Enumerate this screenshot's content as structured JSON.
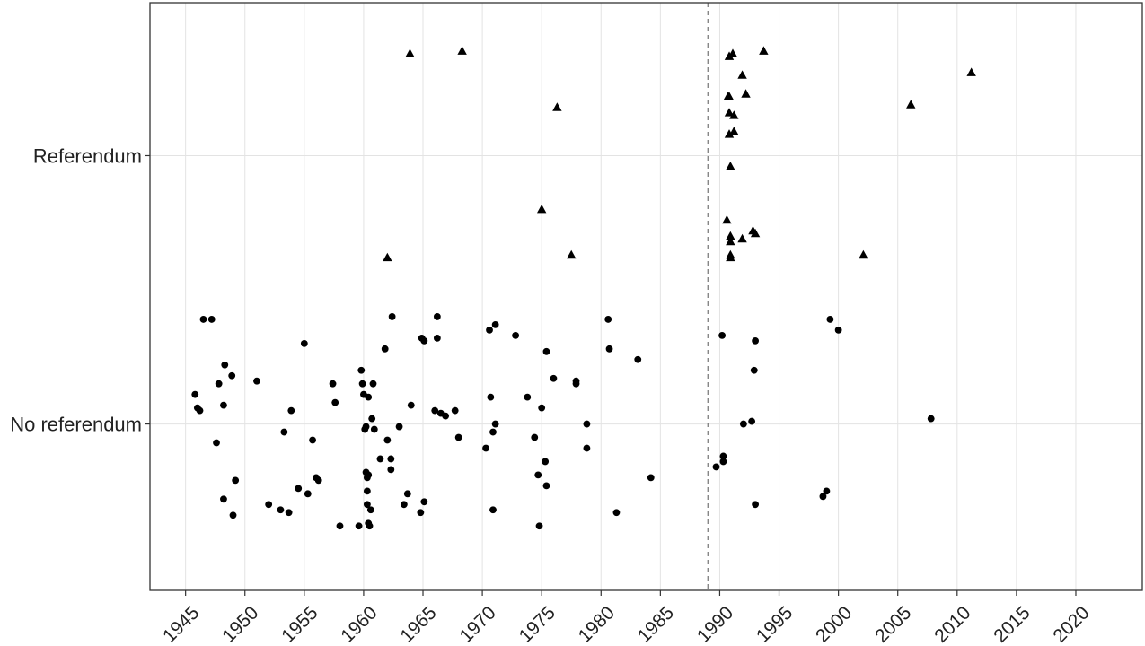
{
  "chart_data": {
    "type": "scatter",
    "title": "",
    "xlabel": "",
    "ylabel": "",
    "xlim": [
      1942,
      2025.6
    ],
    "ylim": [
      -0.62,
      1.57
    ],
    "x_ticks": [
      1945,
      1950,
      1955,
      1960,
      1965,
      1970,
      1975,
      1980,
      1985,
      1990,
      1995,
      2000,
      2005,
      2010,
      2015,
      2020
    ],
    "y_categories": [
      {
        "label": "No referendum",
        "value": 0
      },
      {
        "label": "Referendum",
        "value": 1
      }
    ],
    "grid": true,
    "reference_line": {
      "x": 1989,
      "style": "dashed"
    },
    "series": [
      {
        "marker": "circle",
        "points": [
          [
            1945.8,
            0.11
          ],
          [
            1946.0,
            0.06
          ],
          [
            1946.2,
            0.05
          ],
          [
            1946.5,
            0.39
          ],
          [
            1947.2,
            0.39
          ],
          [
            1947.6,
            -0.07
          ],
          [
            1947.8,
            0.15
          ],
          [
            1948.2,
            -0.28
          ],
          [
            1948.3,
            0.22
          ],
          [
            1948.2,
            0.07
          ],
          [
            1948.9,
            0.18
          ],
          [
            1949.0,
            -0.34
          ],
          [
            1949.2,
            -0.21
          ],
          [
            1951.0,
            0.16
          ],
          [
            1952.0,
            -0.3
          ],
          [
            1953.0,
            -0.32
          ],
          [
            1953.3,
            -0.03
          ],
          [
            1953.7,
            -0.33
          ],
          [
            1953.9,
            0.05
          ],
          [
            1954.5,
            -0.24
          ],
          [
            1955.0,
            0.3
          ],
          [
            1955.3,
            -0.26
          ],
          [
            1955.7,
            -0.06
          ],
          [
            1956.0,
            -0.2
          ],
          [
            1956.2,
            -0.21
          ],
          [
            1957.4,
            0.15
          ],
          [
            1957.6,
            0.08
          ],
          [
            1958.0,
            -0.38
          ],
          [
            1959.6,
            -0.38
          ],
          [
            1959.8,
            0.2
          ],
          [
            1959.9,
            0.15
          ],
          [
            1960.0,
            0.11
          ],
          [
            1960.1,
            -0.02
          ],
          [
            1960.2,
            -0.01
          ],
          [
            1960.2,
            -0.18
          ],
          [
            1960.3,
            -0.2
          ],
          [
            1960.3,
            -0.25
          ],
          [
            1960.3,
            -0.3
          ],
          [
            1960.4,
            -0.19
          ],
          [
            1960.4,
            0.1
          ],
          [
            1960.4,
            -0.37
          ],
          [
            1960.5,
            -0.38
          ],
          [
            1960.6,
            -0.32
          ],
          [
            1960.7,
            0.02
          ],
          [
            1960.8,
            0.15
          ],
          [
            1960.9,
            -0.02
          ],
          [
            1961.4,
            -0.13
          ],
          [
            1961.8,
            0.28
          ],
          [
            1962.0,
            -0.06
          ],
          [
            1962.3,
            -0.17
          ],
          [
            1962.3,
            -0.13
          ],
          [
            1962.4,
            0.4
          ],
          [
            1963.0,
            -0.01
          ],
          [
            1963.4,
            -0.3
          ],
          [
            1963.7,
            -0.26
          ],
          [
            1964.0,
            0.07
          ],
          [
            1964.8,
            -0.33
          ],
          [
            1964.9,
            0.32
          ],
          [
            1965.1,
            0.31
          ],
          [
            1965.1,
            -0.29
          ],
          [
            1966.0,
            0.05
          ],
          [
            1966.2,
            0.4
          ],
          [
            1966.2,
            0.32
          ],
          [
            1966.5,
            0.04
          ],
          [
            1966.9,
            0.03
          ],
          [
            1967.7,
            0.05
          ],
          [
            1968.0,
            -0.05
          ],
          [
            1970.3,
            -0.09
          ],
          [
            1970.6,
            0.35
          ],
          [
            1970.7,
            0.1
          ],
          [
            1970.9,
            -0.03
          ],
          [
            1970.9,
            -0.32
          ],
          [
            1971.1,
            0.37
          ],
          [
            1971.1,
            0.0
          ],
          [
            1972.8,
            0.33
          ],
          [
            1973.8,
            0.1
          ],
          [
            1974.4,
            -0.05
          ],
          [
            1974.7,
            -0.19
          ],
          [
            1974.8,
            -0.38
          ],
          [
            1975.0,
            0.06
          ],
          [
            1975.3,
            -0.14
          ],
          [
            1975.4,
            0.27
          ],
          [
            1975.4,
            -0.23
          ],
          [
            1976.0,
            0.17
          ],
          [
            1977.9,
            0.16
          ],
          [
            1977.9,
            0.15
          ],
          [
            1978.8,
            0.0
          ],
          [
            1978.8,
            -0.09
          ],
          [
            1980.6,
            0.39
          ],
          [
            1980.7,
            0.28
          ],
          [
            1981.3,
            -0.33
          ],
          [
            1983.1,
            0.24
          ],
          [
            1984.2,
            -0.2
          ],
          [
            1989.7,
            -0.16
          ],
          [
            1990.2,
            0.33
          ],
          [
            1990.3,
            -0.12
          ],
          [
            1990.3,
            -0.14
          ],
          [
            1992.0,
            0.0
          ],
          [
            1992.7,
            0.01
          ],
          [
            1992.9,
            0.2
          ],
          [
            1993.0,
            0.31
          ],
          [
            1993.0,
            -0.3
          ],
          [
            1998.7,
            -0.27
          ],
          [
            1999.0,
            -0.25
          ],
          [
            1999.3,
            0.39
          ],
          [
            2000.0,
            0.35
          ],
          [
            2007.8,
            0.02
          ]
        ]
      },
      {
        "marker": "triangle",
        "points": [
          [
            1962.0,
            0.62
          ],
          [
            1963.9,
            1.38
          ],
          [
            1968.3,
            1.39
          ],
          [
            1975.0,
            0.8
          ],
          [
            1976.3,
            1.18
          ],
          [
            1977.5,
            0.63
          ],
          [
            1990.6,
            0.76
          ],
          [
            1990.7,
            1.22
          ],
          [
            1990.8,
            1.22
          ],
          [
            1990.8,
            1.37
          ],
          [
            1990.8,
            1.16
          ],
          [
            1990.8,
            1.08
          ],
          [
            1990.9,
            0.96
          ],
          [
            1990.9,
            0.7
          ],
          [
            1990.9,
            0.68
          ],
          [
            1990.9,
            0.63
          ],
          [
            1990.9,
            0.62
          ],
          [
            1991.1,
            1.38
          ],
          [
            1991.2,
            1.15
          ],
          [
            1991.2,
            1.09
          ],
          [
            1991.9,
            1.3
          ],
          [
            1991.9,
            0.69
          ],
          [
            1992.2,
            1.23
          ],
          [
            1992.8,
            0.72
          ],
          [
            1993.0,
            0.71
          ],
          [
            1993.7,
            1.39
          ],
          [
            2002.1,
            0.63
          ],
          [
            2006.1,
            1.19
          ],
          [
            2011.2,
            1.31
          ]
        ]
      }
    ]
  }
}
